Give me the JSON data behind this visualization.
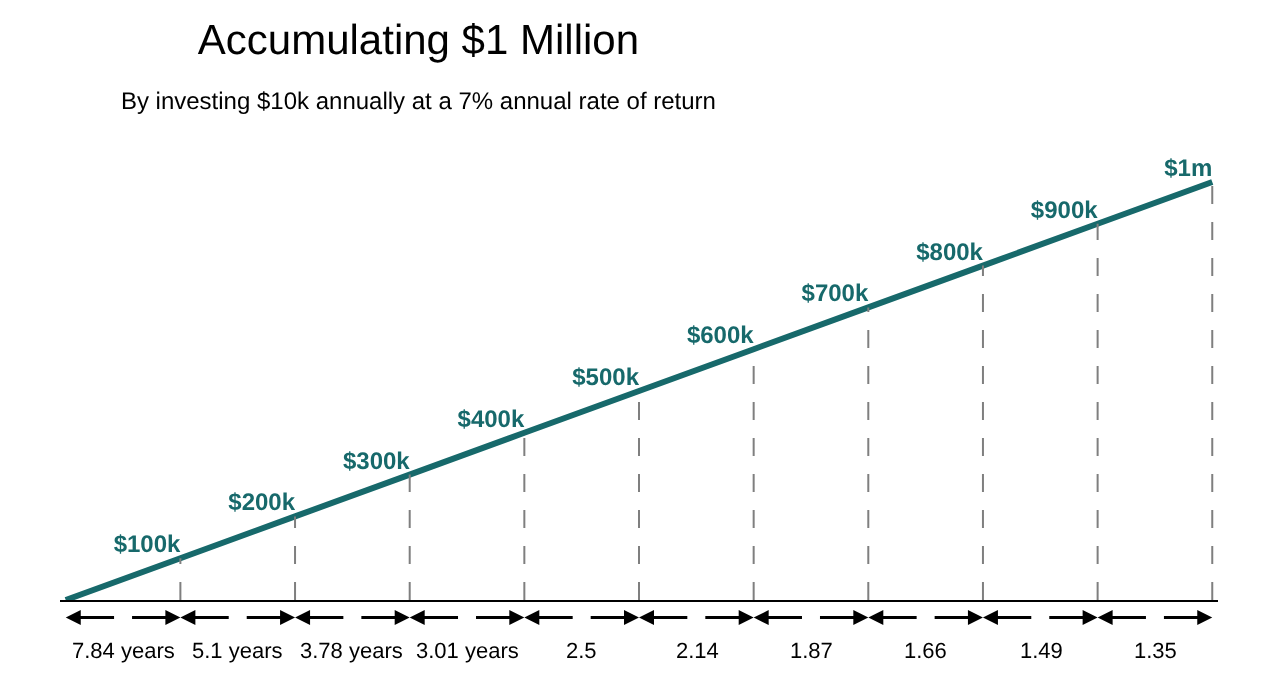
{
  "chart_data": {
    "type": "line",
    "title": "Accumulating $1 Million",
    "subtitle": "By investing $10k annually at a 7% annual rate of return",
    "categories": [
      null,
      null,
      null,
      null,
      null,
      null,
      null,
      null,
      null,
      null,
      null
    ],
    "series": [
      {
        "color": "#17696b",
        "values": [
          0,
          100000,
          200000,
          300000,
          400000,
          500000,
          600000,
          700000,
          800000,
          900000,
          1000000
        ],
        "value_labels": [
          null,
          "$100k",
          "$200k",
          "$300k",
          "$400k",
          "$500k",
          "$600k",
          "$700k",
          "$800k",
          "$900k",
          "$1m"
        ]
      }
    ],
    "tick_labels": false,
    "grid": "x",
    "marker": "none",
    "line_style": "solid",
    "annotations": [
      "7.84 years",
      "5.1 years",
      "3.78 years",
      "3.01 years",
      "2.5",
      "2.14",
      "1.87",
      "1.66",
      "1.49",
      "1.35"
    ]
  }
}
